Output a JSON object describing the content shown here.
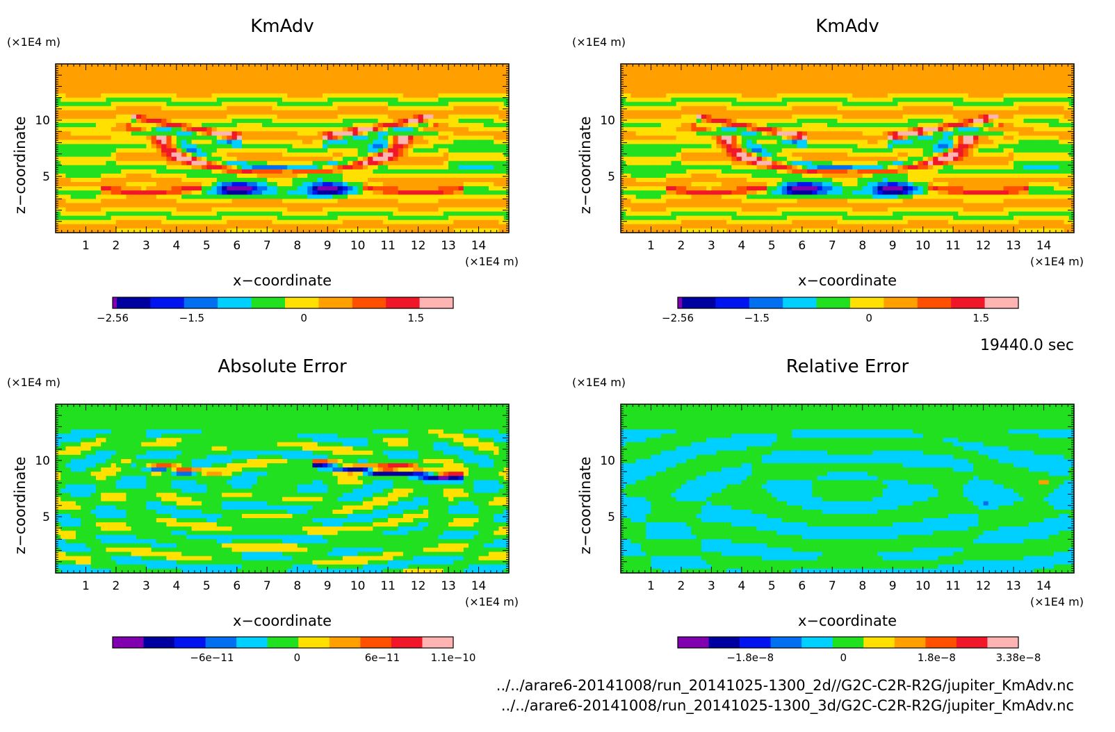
{
  "time_label": "19440.0 sec",
  "files": [
    "../../arare6-20141008/run_20141025-1300_2d//G2C-C2R-R2G/jupiter_KmAdv.nc",
    "../../arare6-20141008/run_20141025-1300_3d/G2C-C2R-R2G/jupiter_KmAdv.nc"
  ],
  "chart_data": [
    {
      "type": "heatmap",
      "title": "KmAdv",
      "xlabel": "x−coordinate",
      "ylabel": "z−coordinate",
      "x_unit": "(×1E4 m)",
      "y_unit": "(×1E4 m)",
      "xlim": [
        0,
        15
      ],
      "ylim": [
        0,
        15
      ],
      "x_ticks": [
        1,
        2,
        3,
        4,
        5,
        6,
        7,
        8,
        9,
        10,
        11,
        12,
        13,
        14
      ],
      "y_ticks": [
        5,
        10
      ],
      "colorbar": {
        "range": [
          -2.56,
          2.0
        ],
        "colors": [
          "#8000b0",
          "#0000a0",
          "#0014f0",
          "#0070f0",
          "#00d0ff",
          "#20e020",
          "#ffe000",
          "#ffa000",
          "#ff5000",
          "#f01828",
          "#ffb4b4"
        ],
        "ticks": [
          {
            "value": -2.56,
            "label": "−2.56"
          },
          {
            "value": -1.5,
            "label": "−1.5"
          },
          {
            "value": 0,
            "label": "0"
          },
          {
            "value": 1.5,
            "label": "1.5"
          }
        ]
      }
    },
    {
      "type": "heatmap",
      "title": "KmAdv",
      "xlabel": "x−coordinate",
      "ylabel": "z−coordinate",
      "x_unit": "(×1E4 m)",
      "y_unit": "(×1E4 m)",
      "xlim": [
        0,
        15
      ],
      "ylim": [
        0,
        15
      ],
      "x_ticks": [
        1,
        2,
        3,
        4,
        5,
        6,
        7,
        8,
        9,
        10,
        11,
        12,
        13,
        14
      ],
      "y_ticks": [
        5,
        10
      ],
      "colorbar": {
        "range": [
          -2.56,
          2.0
        ],
        "colors": [
          "#8000b0",
          "#0000a0",
          "#0014f0",
          "#0070f0",
          "#00d0ff",
          "#20e020",
          "#ffe000",
          "#ffa000",
          "#ff5000",
          "#f01828",
          "#ffb4b4"
        ],
        "ticks": [
          {
            "value": -2.56,
            "label": "−2.56"
          },
          {
            "value": -1.5,
            "label": "−1.5"
          },
          {
            "value": 0,
            "label": "0"
          },
          {
            "value": 1.5,
            "label": "1.5"
          }
        ]
      }
    },
    {
      "type": "heatmap",
      "title": "Absolute Error",
      "xlabel": "x−coordinate",
      "ylabel": "z−coordinate",
      "x_unit": "(×1E4 m)",
      "y_unit": "(×1E4 m)",
      "xlim": [
        0,
        15
      ],
      "ylim": [
        0,
        15
      ],
      "x_ticks": [
        1,
        2,
        3,
        4,
        5,
        6,
        7,
        8,
        9,
        10,
        11,
        12,
        13,
        14
      ],
      "y_ticks": [
        5,
        10
      ],
      "colorbar": {
        "range": [
          -1.3e-10,
          1.1e-10
        ],
        "colors": [
          "#8000b0",
          "#0000a0",
          "#0014f0",
          "#0070f0",
          "#00d0ff",
          "#20e020",
          "#ffe000",
          "#ffa000",
          "#ff5000",
          "#f01828",
          "#ffb4b4"
        ],
        "ticks": [
          {
            "value": -6e-11,
            "label": "−6e−11"
          },
          {
            "value": 0,
            "label": "0"
          },
          {
            "value": 6e-11,
            "label": "6e−11"
          },
          {
            "value": 1.1e-10,
            "label": "1.1e−10"
          }
        ]
      }
    },
    {
      "type": "heatmap",
      "title": "Relative Error",
      "xlabel": "x−coordinate",
      "ylabel": "z−coordinate",
      "x_unit": "(×1E4 m)",
      "y_unit": "(×1E4 m)",
      "xlim": [
        0,
        15
      ],
      "ylim": [
        0,
        15
      ],
      "x_ticks": [
        1,
        2,
        3,
        4,
        5,
        6,
        7,
        8,
        9,
        10,
        11,
        12,
        13,
        14
      ],
      "y_ticks": [
        5,
        10
      ],
      "colorbar": {
        "range": [
          -3.2e-08,
          3.38e-08
        ],
        "colors": [
          "#8000b0",
          "#0000a0",
          "#0014f0",
          "#0070f0",
          "#00d0ff",
          "#20e020",
          "#ffe000",
          "#ffa000",
          "#ff5000",
          "#f01828",
          "#ffb4b4"
        ],
        "ticks": [
          {
            "value": -1.8e-08,
            "label": "−1.8e−8"
          },
          {
            "value": 0,
            "label": "0"
          },
          {
            "value": 1.8e-08,
            "label": "1.8e−8"
          },
          {
            "value": 3.38e-08,
            "label": "3.38e−8"
          }
        ]
      }
    }
  ]
}
